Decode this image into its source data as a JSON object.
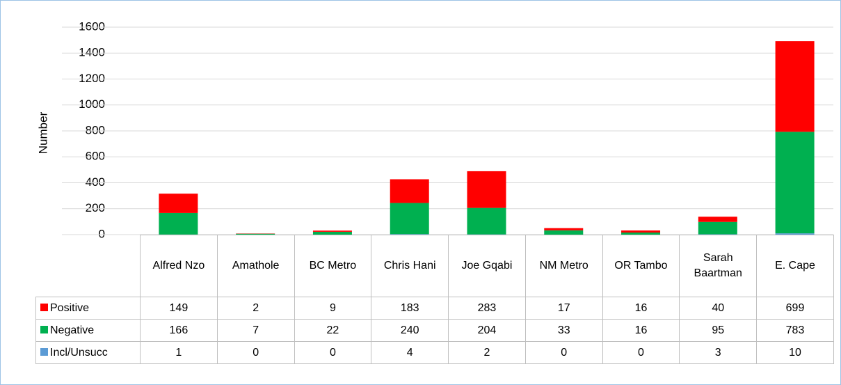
{
  "chart_data": {
    "type": "stacked_bar",
    "y_label": "Number",
    "categories": [
      "Alfred Nzo",
      "Amathole",
      "BC Metro",
      "Chris Hani",
      "Joe Gqabi",
      "NM Metro",
      "OR Tambo",
      "Sarah Baartman",
      "E. Cape"
    ],
    "series": [
      {
        "name": "Positive",
        "color": "#ff0000",
        "values": [
          149,
          2,
          9,
          183,
          283,
          17,
          16,
          40,
          699
        ]
      },
      {
        "name": "Negative",
        "color": "#00b050",
        "values": [
          166,
          7,
          22,
          240,
          204,
          33,
          16,
          95,
          783
        ]
      },
      {
        "name": "Incl/Unsucc",
        "color": "#5b9bd5",
        "values": [
          1,
          0,
          0,
          4,
          2,
          0,
          0,
          3,
          10
        ]
      }
    ],
    "ylim": [
      0,
      1600
    ],
    "yticks": [
      0,
      200,
      400,
      600,
      800,
      1000,
      1200,
      1400,
      1600
    ],
    "grid": true
  }
}
